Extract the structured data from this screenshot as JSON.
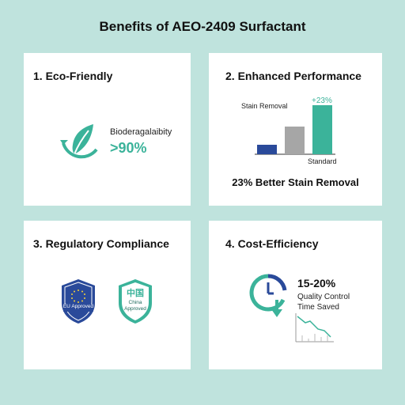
{
  "title": "Benefits of AEO-2409 Surfactant",
  "colors": {
    "accent": "#3bb39a",
    "navy": "#2a4a9a",
    "gray": "#a6a6a6",
    "background": "#bfe3dd"
  },
  "cards": {
    "eco": {
      "title": "1. Eco-Friendly",
      "icon": "recycle-leaf-icon",
      "label": "Bioderagalaibity",
      "value": ">90%"
    },
    "performance": {
      "title": "2. Enhanced Performance",
      "chart_label": "Stain Removal",
      "increase_label": "+23%",
      "standard_label": "Standard",
      "summary": "23% Better Stain Removal"
    },
    "compliance": {
      "title": "3. Regulatory Compliance",
      "eu_badge": "EU Approved",
      "china_chars": "中国",
      "china_badge_line1": "China",
      "china_badge_line2": "Approved"
    },
    "cost": {
      "title": "4. Cost-Efficiency",
      "icon": "clock-down-arrow-icon",
      "value": "15-20%",
      "line1": "Quality Control",
      "line2": "Time Saved",
      "trend_icon": "declining-chart-icon"
    }
  },
  "chart_data": {
    "type": "bar",
    "categories": [
      "",
      "",
      ""
    ],
    "values": [
      12,
      35,
      62
    ],
    "colors": [
      "#2a4a9a",
      "#a6a6a6",
      "#3bb39a"
    ],
    "title": "Stain Removal",
    "xlabel": "",
    "ylabel": "",
    "annotations": [
      "+23%",
      "Standard"
    ],
    "ylim": [
      0,
      70
    ]
  }
}
